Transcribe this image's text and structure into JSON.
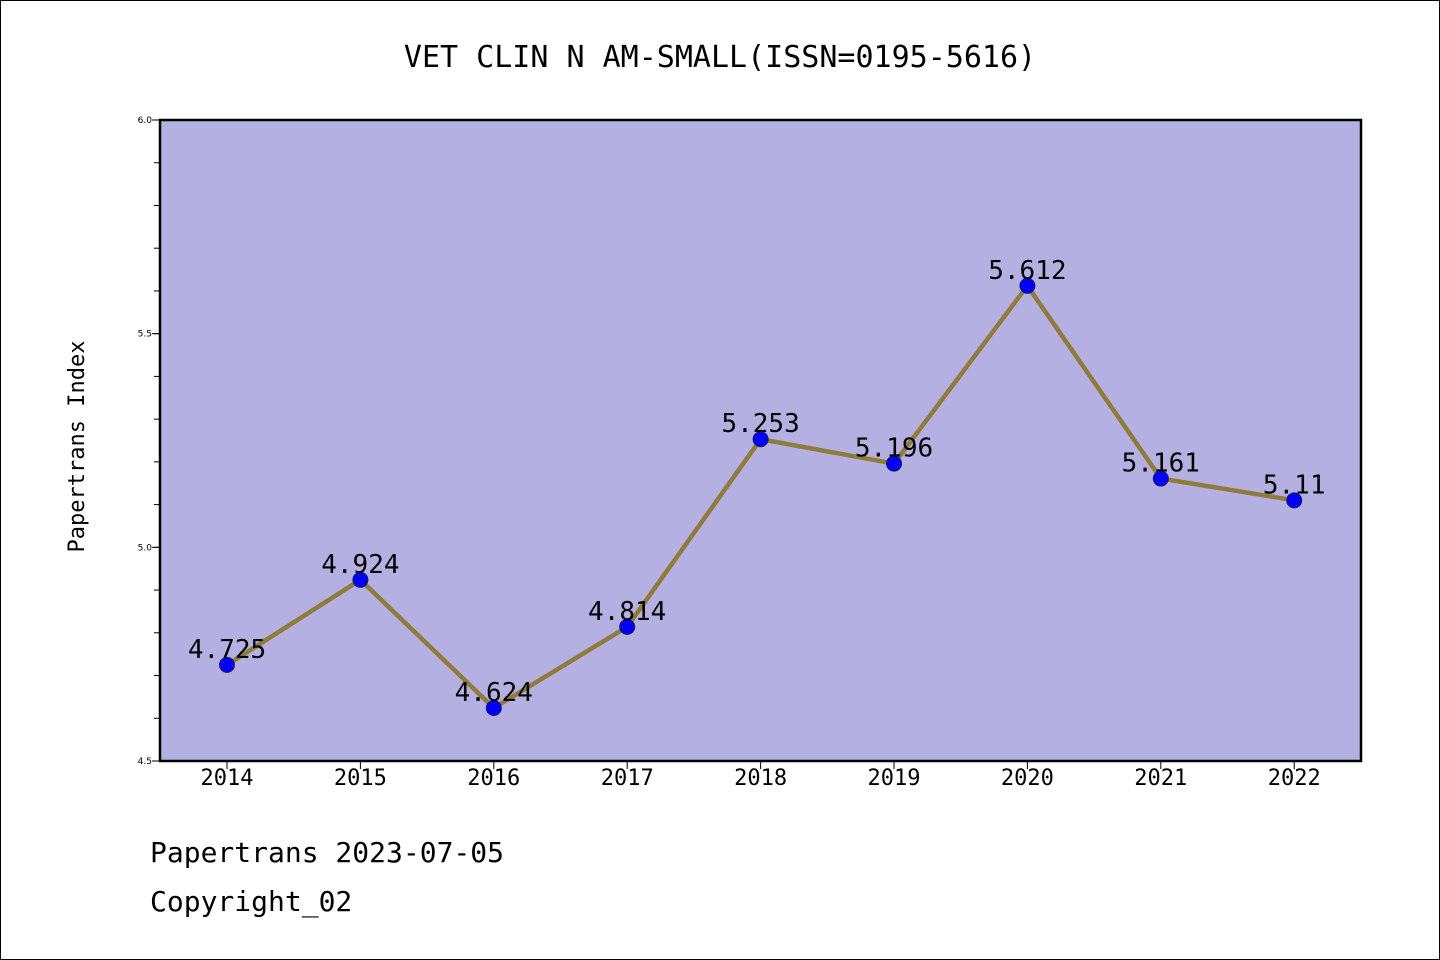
{
  "chart_data": {
    "type": "line",
    "title": "VET CLIN N AM-SMALL(ISSN=0195-5616)",
    "ylabel": "Papertrans Index",
    "xlabel": "",
    "categories": [
      "2014",
      "2015",
      "2016",
      "2017",
      "2018",
      "2019",
      "2020",
      "2021",
      "2022"
    ],
    "series": [
      {
        "values": [
          4.725,
          4.924,
          4.624,
          4.814,
          5.253,
          5.196,
          5.612,
          5.161,
          5.11
        ],
        "labels": [
          "4.725",
          "4.924",
          "4.624",
          "4.814",
          "5.253",
          "5.196",
          "5.612",
          "5.161",
          "5.11"
        ]
      }
    ],
    "ylim": [
      4.5,
      6.0
    ],
    "yticks": [
      "4.5",
      "5.0",
      "5.5",
      "6.0"
    ],
    "grid": false,
    "colors": {
      "plot_background": "#b5b0e2",
      "line": "#8f7c3c",
      "marker": "#0000ff"
    }
  },
  "footer": {
    "date_text": "Papertrans 2023-07-05",
    "copyright_text": "Copyright_02"
  }
}
